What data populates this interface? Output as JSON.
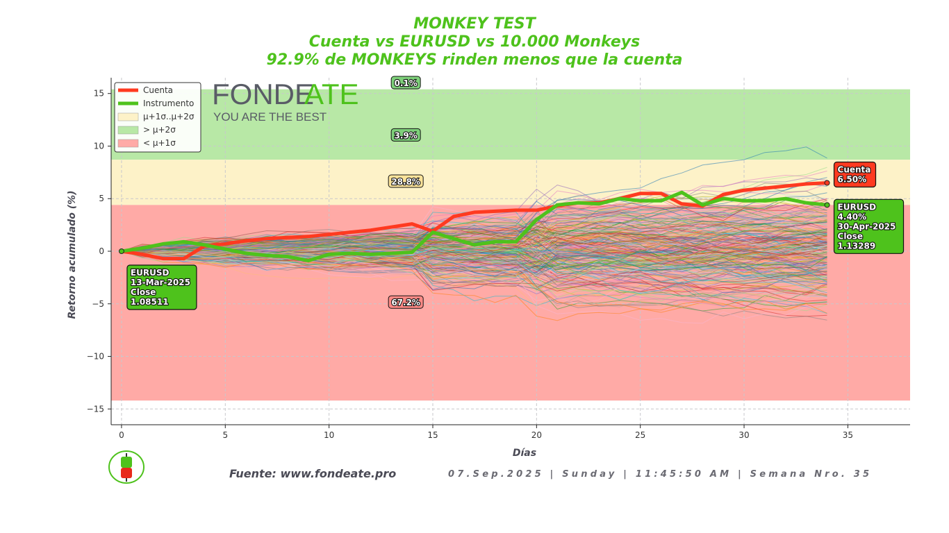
{
  "title_lines": [
    "MONKEY TEST",
    "Cuenta vs EURUSD vs 10.000 Monkeys",
    "92.9% de MONKEYS rinden menos que la cuenta"
  ],
  "colors": {
    "title": "#4ec21c",
    "account": "#ff3a20",
    "instrument": "#4ec21c",
    "band_top": "#b8e8a6",
    "band_mid": "#fdf2c8",
    "band_low": "#ffaaa6"
  },
  "watermark": {
    "brand_a": "FONDE",
    "brand_b": "ATE",
    "tagline": "YOU ARE THE BEST"
  },
  "legend": [
    {
      "label": "Cuenta",
      "kind": "line",
      "color": "#ff3a20"
    },
    {
      "label": "Instrumento",
      "kind": "line",
      "color": "#4ec21c"
    },
    {
      "label": "μ+1σ..μ+2σ",
      "kind": "patch",
      "color": "#fdf2c8"
    },
    {
      "label": "> μ+2σ",
      "kind": "patch",
      "color": "#b8e8a6"
    },
    {
      "label": "< μ+1σ",
      "kind": "patch",
      "color": "#ffaaa6"
    }
  ],
  "chart_data": {
    "type": "line",
    "xlabel": "Días",
    "ylabel": "Retorno acumulado (%)",
    "xlim": [
      -0.5,
      38
    ],
    "ylim": [
      -16.5,
      16.5
    ],
    "xticks": [
      0,
      5,
      10,
      15,
      20,
      25,
      30,
      35
    ],
    "yticks": [
      -15,
      -10,
      -5,
      0,
      5,
      10,
      15
    ],
    "grid": true,
    "legend_position": "top-left",
    "bands": [
      {
        "name": "> μ+2σ",
        "from": 8.7,
        "to": 15.4
      },
      {
        "name": "μ+1σ..μ+2σ",
        "from": 4.4,
        "to": 8.7
      },
      {
        "name": "< μ+1σ",
        "from": -14.2,
        "to": 4.4
      }
    ],
    "band_percentages": [
      {
        "label": "0.1%",
        "x": 13.7,
        "y": 16.5,
        "color": "#7ed07a"
      },
      {
        "label": "3.9%",
        "x": 13.7,
        "y": 11.0,
        "color": "#7ed07a"
      },
      {
        "label": "28.8%",
        "x": 13.7,
        "y": 6.6,
        "color": "#fbe39a"
      },
      {
        "label": "67.2%",
        "x": 13.7,
        "y": -4.9,
        "color": "#ff8a86"
      }
    ],
    "series": [
      {
        "name": "Cuenta",
        "x": [
          0,
          1,
          2,
          3,
          4,
          5,
          6,
          7,
          8,
          9,
          10,
          11,
          12,
          13,
          14,
          15,
          16,
          17,
          18,
          19,
          20,
          21,
          22,
          23,
          24,
          25,
          26,
          27,
          28,
          29,
          30,
          31,
          32,
          33,
          34
        ],
        "values": [
          0,
          -0.3,
          -0.7,
          -0.7,
          0.5,
          0.7,
          1.0,
          1.2,
          1.3,
          1.4,
          1.6,
          1.8,
          2.0,
          2.3,
          2.6,
          1.9,
          3.3,
          3.7,
          3.8,
          3.9,
          3.9,
          4.3,
          4.6,
          4.6,
          5.0,
          5.5,
          5.5,
          4.5,
          4.3,
          5.4,
          5.8,
          6.0,
          6.2,
          6.4,
          6.5
        ]
      },
      {
        "name": "Instrumento",
        "x": [
          0,
          1,
          2,
          3,
          4,
          5,
          6,
          7,
          8,
          9,
          10,
          11,
          12,
          13,
          14,
          15,
          16,
          17,
          18,
          19,
          20,
          21,
          22,
          23,
          24,
          25,
          26,
          27,
          28,
          29,
          30,
          31,
          32,
          33,
          34
        ],
        "values": [
          0,
          0.3,
          0.7,
          0.9,
          0.6,
          0.2,
          -0.2,
          -0.4,
          -0.5,
          -0.9,
          -0.3,
          -0.2,
          -0.3,
          -0.2,
          -0.1,
          1.8,
          1.2,
          0.6,
          0.9,
          0.9,
          3.0,
          4.4,
          4.6,
          4.5,
          5.0,
          4.8,
          4.8,
          5.6,
          4.4,
          5.0,
          4.8,
          4.8,
          5.0,
          4.6,
          4.4
        ]
      }
    ],
    "monkeys_visible": "thousands of random-walk paths (10.000 Monkeys)",
    "annotations": [
      {
        "text_lines": [
          "EURUSD",
          "13-Mar-2025",
          "Close",
          "1.08511"
        ],
        "x": 0,
        "y": 0,
        "color": "#4ec21c"
      },
      {
        "text_lines": [
          "Cuenta",
          "6.50%"
        ],
        "x": 34,
        "y": 6.5,
        "color": "#ff3a20"
      },
      {
        "text_lines": [
          "EURUSD",
          "4.40%",
          "30-Apr-2025",
          "Close",
          "1.13289"
        ],
        "x": 34,
        "y": 4.4,
        "color": "#4ec21c"
      }
    ]
  },
  "footer": {
    "source": "Fuente: www.fondeate.pro",
    "date_line": "07.Sep.2025 | Sunday | 11:45:50 AM | Semana Nro. 35"
  }
}
